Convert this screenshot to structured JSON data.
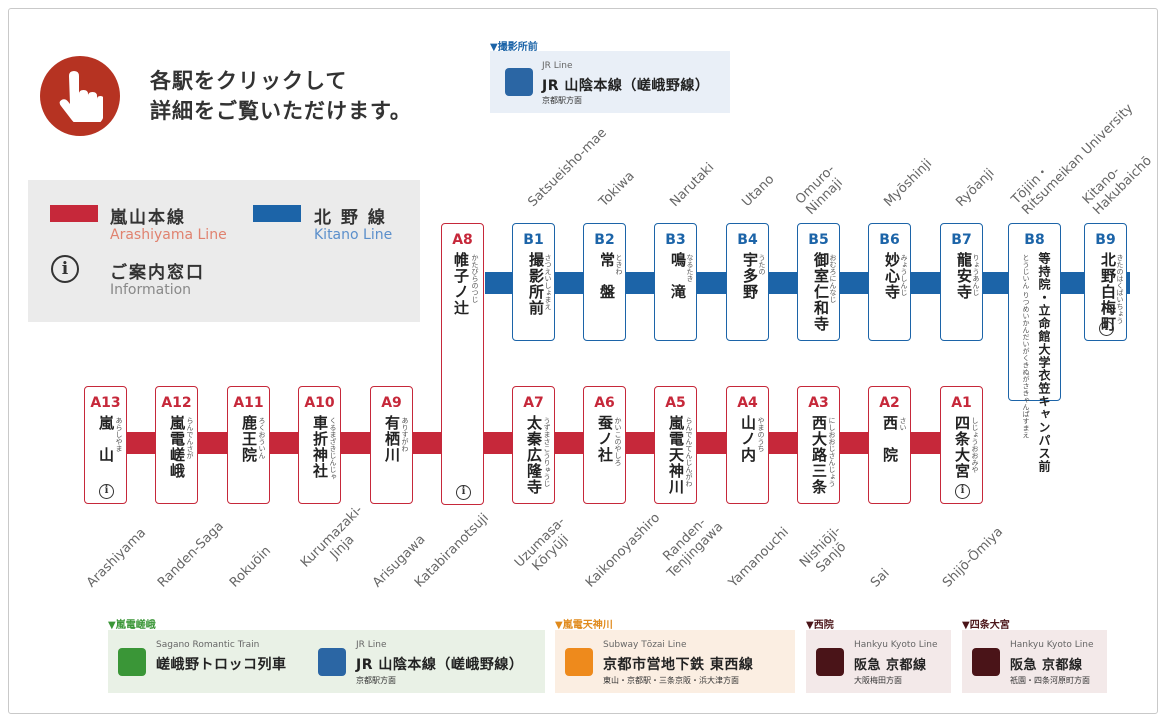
{
  "instruction": "各駅をクリックして\n詳細をご覧いただけます。",
  "legend": {
    "arashiyama_jp": "嵐山本線",
    "arashiyama_en": "Arashiyama Line",
    "kitano_jp": "北 野 線",
    "kitano_en": "Kitano Line",
    "info_jp": "ご案内窓口",
    "info_en": "Information"
  },
  "colors": {
    "arashiyama": "#c6283a",
    "kitano": "#1c64a8",
    "hand": "#b63322"
  },
  "transfer_top": {
    "head": "▼撮影所前",
    "sub": "JR Line",
    "main": "JR 山陰本線（嵯峨野線）",
    "dest": "京都駅方面"
  },
  "stations_kitano": [
    {
      "code": "B1",
      "kanji": "撮影所前",
      "kana": "さつえいしょまえ",
      "en": "Satsueisho-mae"
    },
    {
      "code": "B2",
      "kanji": "常　盤",
      "kana": "ときわ",
      "en": "Tokiwa"
    },
    {
      "code": "B3",
      "kanji": "鳴　滝",
      "kana": "なるたき",
      "en": "Narutaki"
    },
    {
      "code": "B4",
      "kanji": "宇多野",
      "kana": "うたの",
      "en": "Utano"
    },
    {
      "code": "B5",
      "kanji": "御室仁和寺",
      "kana": "おむろにんなじ",
      "en": "Omuro-\nNinnaji"
    },
    {
      "code": "B6",
      "kanji": "妙心寺",
      "kana": "みょうしんじ",
      "en": "Myōshinji"
    },
    {
      "code": "B7",
      "kanji": "龍安寺",
      "kana": "りょうあんじ",
      "en": "Ryōanji"
    },
    {
      "code": "B8",
      "kanji": "等持院・立命館大学衣笠キャンパス前",
      "kana": "とうじいん りつめいかんだいがくきぬがさきゃんぱすまえ",
      "en": "Tōjiin・\nRitsumeikan University"
    },
    {
      "code": "B9",
      "kanji": "北野白梅町",
      "kana": "きたのはくばいちょう",
      "en": "Kitano-\nHakubaichō"
    }
  ],
  "station_a8": {
    "code": "A8",
    "kanji": "帷子ノ辻",
    "kana": "かたびらのつじ",
    "en": "Katabiranotsuji"
  },
  "stations_arashiyama": [
    {
      "code": "A13",
      "kanji": "嵐　山",
      "kana": "あらしやま",
      "en": "Arashiyama"
    },
    {
      "code": "A12",
      "kanji": "嵐電嵯峨",
      "kana": "らんでんさが",
      "en": "Randen-Saga"
    },
    {
      "code": "A11",
      "kanji": "鹿王院",
      "kana": "ろくおういん",
      "en": "Rokuōin"
    },
    {
      "code": "A10",
      "kanji": "車折神社",
      "kana": "くるまざきじんじゃ",
      "en": "Kurumazaki-\nJinja"
    },
    {
      "code": "A9",
      "kanji": "有栖川",
      "kana": "ありすがわ",
      "en": "Arisugawa"
    },
    {
      "code": "A7",
      "kanji": "太秦広隆寺",
      "kana": "うずまさこうりゅうじ",
      "en": "Uzumasa-\nKōryūji"
    },
    {
      "code": "A6",
      "kanji": "蚕ノ社",
      "kana": "かいこのやしろ",
      "en": "Kaikonoyashiro"
    },
    {
      "code": "A5",
      "kanji": "嵐電天神川",
      "kana": "らんでんてんじんがわ",
      "en": "Randen-\nTenjingawa"
    },
    {
      "code": "A4",
      "kanji": "山ノ内",
      "kana": "やまのうち",
      "en": "Yamanouchi"
    },
    {
      "code": "A3",
      "kanji": "西大路三条",
      "kana": "にしおおじさんじょう",
      "en": "Nishiōji-\nSanjō"
    },
    {
      "code": "A2",
      "kanji": "西　院",
      "kana": "さい",
      "en": "Sai"
    },
    {
      "code": "A1",
      "kanji": "四条大宮",
      "kana": "しじょうおおみや",
      "en": "Shijō-Ōmiya"
    }
  ],
  "transfers_bottom": [
    {
      "head": "▼嵐電嵯峨",
      "items": [
        {
          "sub": "Sagano Romantic Train",
          "main": "嵯峨野トロッコ列車",
          "dest": "",
          "color": "#3a9637"
        },
        {
          "sub": "JR Line",
          "main": "JR 山陰本線（嵯峨野線）",
          "dest": "京都駅方面",
          "color": "#2b66a4"
        }
      ]
    },
    {
      "head": "▼嵐電天神川",
      "items": [
        {
          "sub": "Subway Tōzai Line",
          "main": "京都市営地下鉄 東西線",
          "dest": "東山・京都駅・三条京阪・浜大津方面",
          "color": "#ee8a1c"
        }
      ]
    },
    {
      "head": "▼西院",
      "items": [
        {
          "sub": "Hankyu Kyoto Line",
          "main": "阪急 京都線",
          "dest": "大阪梅田方面",
          "color": "#4a1418"
        }
      ]
    },
    {
      "head": "▼四条大宮",
      "items": [
        {
          "sub": "Hankyu Kyoto Line",
          "main": "阪急 京都線",
          "dest": "祇園・四条河原町方面",
          "color": "#4a1418"
        }
      ]
    }
  ]
}
